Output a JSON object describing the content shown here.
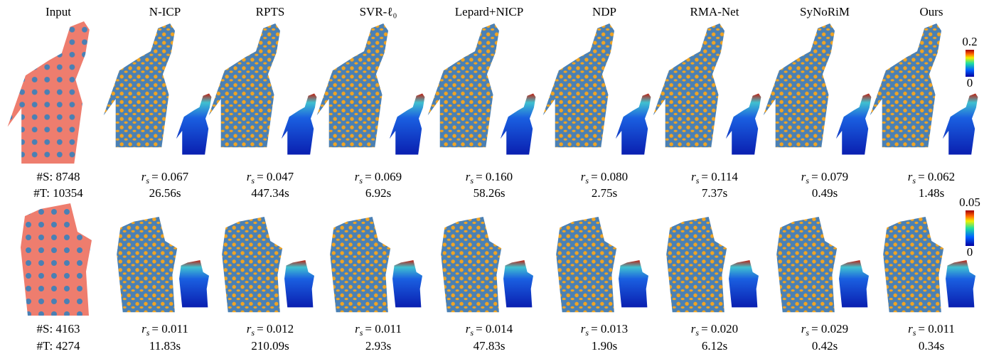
{
  "columns": [
    "Input",
    "N-ICP",
    "RPTS",
    "SVR-ℓ₀",
    "Lepard+NICP",
    "NDP",
    "RMA-Net",
    "SyNoRiM",
    "Ours"
  ],
  "metric": {
    "symbol": "r",
    "subscript": "s"
  },
  "rows": [
    {
      "input": {
        "source": "#S: 8748",
        "target": "#T: 10354"
      },
      "colorbar": {
        "max": "0.2",
        "min": "0"
      },
      "results": [
        {
          "error": "= 0.067",
          "time": "26.56s"
        },
        {
          "error": "= 0.047",
          "time": "447.34s"
        },
        {
          "error": "= 0.069",
          "time": "6.92s"
        },
        {
          "error": "= 0.160",
          "time": "58.26s"
        },
        {
          "error": "= 0.080",
          "time": "2.75s"
        },
        {
          "error": "= 0.114",
          "time": "7.37s"
        },
        {
          "error": "= 0.079",
          "time": "0.49s"
        },
        {
          "error": "= 0.062",
          "time": "1.48s"
        }
      ]
    },
    {
      "input": {
        "source": "#S: 4163",
        "target": "#T: 4274"
      },
      "colorbar": {
        "max": "0.05",
        "min": "0"
      },
      "results": [
        {
          "error": "= 0.011",
          "time": "11.83s"
        },
        {
          "error": "= 0.012",
          "time": "210.09s"
        },
        {
          "error": "= 0.011",
          "time": "2.93s"
        },
        {
          "error": "= 0.014",
          "time": "47.83s"
        },
        {
          "error": "= 0.013",
          "time": "1.90s"
        },
        {
          "error": "= 0.020",
          "time": "6.12s"
        },
        {
          "error": "= 0.029",
          "time": "0.42s"
        },
        {
          "error": "= 0.011",
          "time": "0.34s"
        }
      ]
    }
  ]
}
